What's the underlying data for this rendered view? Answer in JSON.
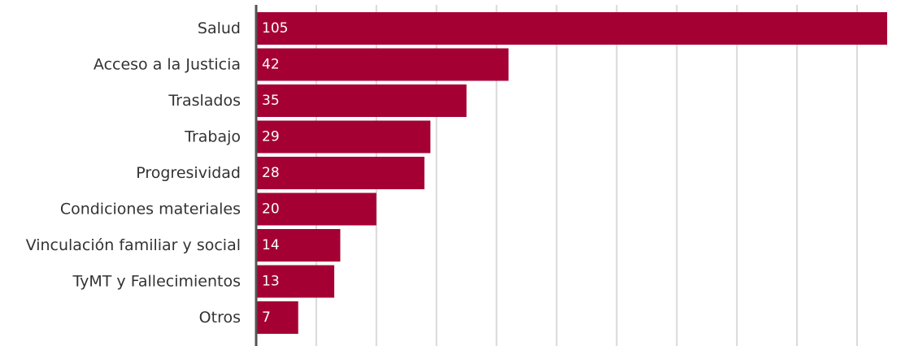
{
  "chart_data": {
    "type": "bar",
    "orientation": "horizontal",
    "categories": [
      "Salud",
      "Acceso a la Justicia",
      "Traslados",
      "Trabajo",
      "Progresividad",
      "Condiciones materiales",
      "Vinculación familiar y social",
      "TyMT y Fallecimientos",
      "Otros"
    ],
    "values": [
      105,
      42,
      35,
      29,
      28,
      20,
      14,
      13,
      7
    ],
    "data_labels": [
      "105",
      "42",
      "35",
      "29",
      "28",
      "20",
      "14",
      "13",
      "7"
    ],
    "xlim": [
      0,
      105
    ],
    "grid_step": 10,
    "grid": true,
    "legend": "none",
    "colors": {
      "bar": "#A50034",
      "grid": "#d9d9d9",
      "axis": "#555555",
      "label": "#333333",
      "value_label": "#ffffff"
    }
  }
}
